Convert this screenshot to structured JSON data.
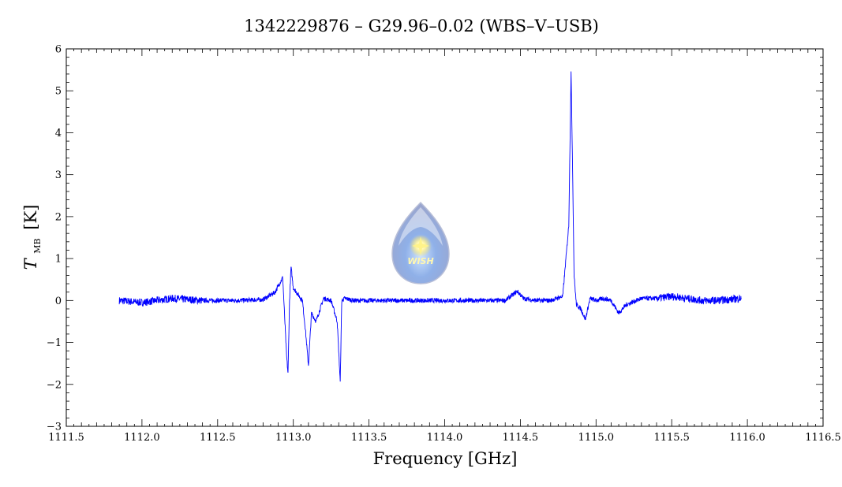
{
  "chart_data": {
    "type": "line",
    "title": "1342229876 – G29.96–0.02 (WBS–V–USB)",
    "xlabel": "Frequency [GHz]",
    "ylabel": "T",
    "ylabel_sub": "MB",
    "ylabel_unit": "[K]",
    "xlim": [
      1111.5,
      1116.5
    ],
    "ylim": [
      -3,
      6
    ],
    "x_ticks": [
      1111.5,
      1112.0,
      1112.5,
      1113.0,
      1113.5,
      1114.0,
      1114.5,
      1115.0,
      1115.5,
      1116.0,
      1116.5
    ],
    "x_tick_labels": [
      "1111.5",
      "1112.0",
      "1112.5",
      "1113.0",
      "1113.5",
      "1114.0",
      "1114.5",
      "1115.0",
      "1115.5",
      "1116.0",
      "1116.5"
    ],
    "y_ticks": [
      -3,
      -2,
      -1,
      0,
      1,
      2,
      3,
      4,
      5,
      6
    ],
    "y_tick_labels": [
      "−3",
      "−2",
      "−1",
      "0",
      "1",
      "2",
      "3",
      "4",
      "5",
      "6"
    ],
    "grid": false,
    "line_color": "#0000ff",
    "series": [
      {
        "x": [
          1111.85,
          1112.0,
          1112.2,
          1112.4,
          1112.6,
          1112.8,
          1112.88,
          1112.93,
          1112.955,
          1112.965,
          1112.975,
          1112.985,
          1113.0,
          1113.03,
          1113.06,
          1113.08,
          1113.1,
          1113.12,
          1113.15,
          1113.2,
          1113.25,
          1113.29,
          1113.31,
          1113.32,
          1113.34,
          1113.4,
          1113.6,
          1113.8,
          1114.0,
          1114.2,
          1114.4,
          1114.48,
          1114.52,
          1114.6,
          1114.7,
          1114.78,
          1114.82,
          1114.835,
          1114.845,
          1114.855,
          1114.87,
          1114.9,
          1114.93,
          1114.96,
          1115.0,
          1115.05,
          1115.1,
          1115.15,
          1115.2,
          1115.3,
          1115.4,
          1115.5,
          1115.6,
          1115.7,
          1115.8,
          1115.96
        ],
        "y": [
          0.0,
          -0.05,
          0.05,
          0.0,
          0.0,
          0.02,
          0.2,
          0.55,
          -1.3,
          -1.75,
          0.0,
          0.8,
          0.3,
          0.15,
          0.0,
          -0.7,
          -1.55,
          -0.3,
          -0.5,
          0.05,
          0.0,
          -0.5,
          -1.95,
          0.0,
          0.05,
          0.0,
          0.0,
          0.0,
          0.0,
          0.0,
          0.0,
          0.22,
          0.05,
          0.0,
          0.0,
          0.1,
          1.8,
          5.45,
          3.2,
          0.6,
          -0.1,
          -0.2,
          -0.45,
          0.05,
          0.0,
          0.05,
          0.0,
          -0.3,
          -0.1,
          0.05,
          0.05,
          0.1,
          0.05,
          0.0,
          0.0,
          0.05
        ]
      }
    ],
    "logo_text": "WISH"
  }
}
